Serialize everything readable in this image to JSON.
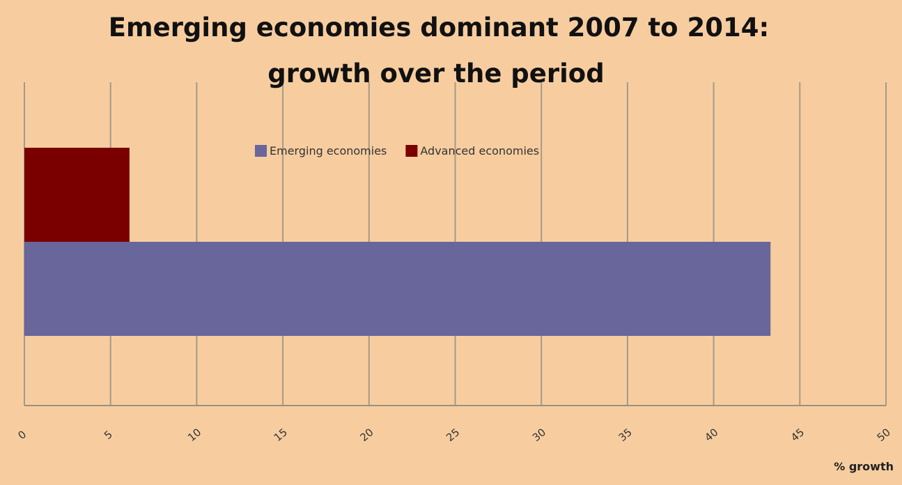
{
  "chart_data": {
    "type": "bar",
    "orientation": "horizontal",
    "title": "Emerging economies dominant 2007 to 2014:",
    "subtitle": "growth over the period",
    "xlabel": "% growth",
    "ylabel": "",
    "xlim": [
      0,
      50
    ],
    "x_ticks": [
      "0",
      "5",
      "10",
      "15",
      "20",
      "25",
      "30",
      "35",
      "40",
      "45",
      "50"
    ],
    "grid": true,
    "legend_position": "top-center",
    "series": [
      {
        "name": "Emerging economies",
        "values": [
          43.3
        ],
        "color": "#68669a"
      },
      {
        "name": "Advanced economies",
        "values": [
          6.1
        ],
        "color": "#7a0000"
      }
    ]
  }
}
